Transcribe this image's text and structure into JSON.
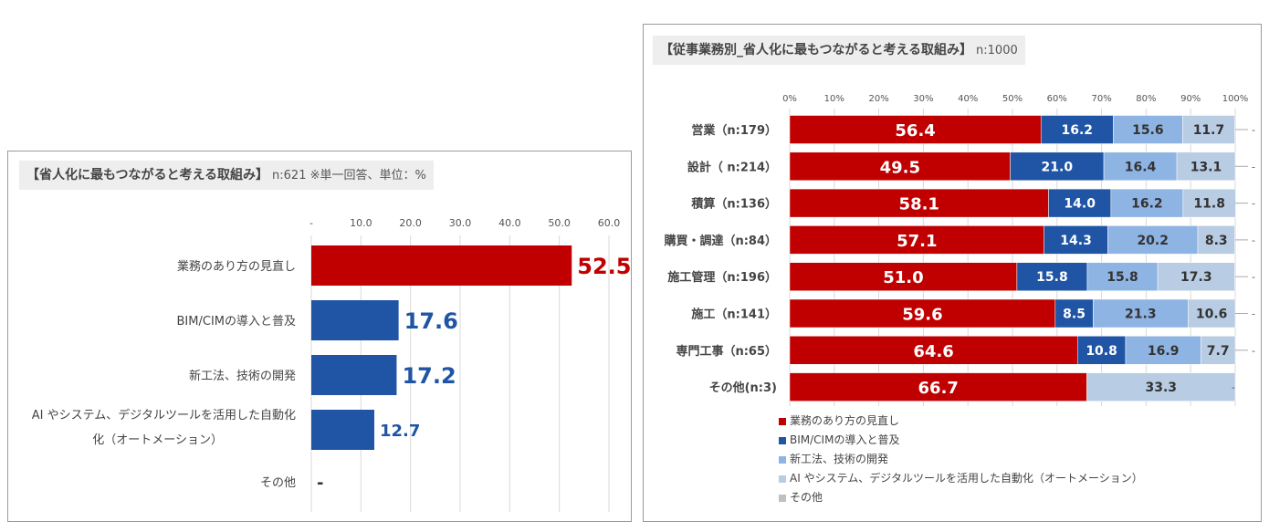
{
  "left": {
    "title": "【省人化に最もつながると考える取組み】",
    "subtitle": "n:621 ※単一回答、単位：%"
  },
  "right": {
    "title": "【従事業務別_省人化に最もつながると考える取組み】",
    "subtitle": "n:1000"
  },
  "chart_data": [
    {
      "type": "bar",
      "orientation": "horizontal",
      "title": "【省人化に最もつながると考える取組み】",
      "subtitle": "n:621 ※単一回答、単位：%",
      "categories": [
        "業務のあり方の見直し",
        "BIM/CIMの導入と普及",
        "新工法、技術の開発",
        "AI やシステム、デジタルツールを活用した自動化（オートメーション）",
        "その他"
      ],
      "category_lines": [
        [
          "業務のあり方の見直し"
        ],
        [
          "BIM/CIMの導入と普及"
        ],
        [
          "新工法、技術の開発"
        ],
        [
          "AI やシステム、デジタルツールを活用した自動化"
        ],
        [
          "化（オートメーション）"
        ]
      ],
      "values": [
        52.5,
        17.6,
        17.2,
        12.7,
        null
      ],
      "value_labels": [
        "52.5",
        "17.6",
        "17.2",
        "12.7",
        "-"
      ],
      "colors": [
        "#c00000",
        "#1f55a4",
        "#1f55a4",
        "#1f55a4",
        "#1f55a4"
      ],
      "label_colors": [
        "#c00000",
        "#1f55a4",
        "#1f55a4",
        "#1f55a4",
        "#333333"
      ],
      "xlim": [
        0,
        60
      ],
      "xticks": [
        "-",
        "10.0",
        "20.0",
        "30.0",
        "40.0",
        "50.0",
        "60.0"
      ],
      "grid": true
    },
    {
      "type": "bar",
      "stacked": true,
      "orientation": "horizontal",
      "percent": true,
      "title": "【従事業務別_省人化に最もつながると考える取組み】",
      "subtitle": "n:1000",
      "categories": [
        "営業（n:179）",
        "設計（ n:214）",
        "積算（n:136）",
        "購買・調達（n:84）",
        "施工管理（n:196）",
        "施工（n:141）",
        "専門工事（n:65）",
        "その他(n:3)"
      ],
      "xticks": [
        "0%",
        "10%",
        "20%",
        "30%",
        "40%",
        "50%",
        "60%",
        "70%",
        "80%",
        "90%",
        "100%"
      ],
      "xlim": [
        0,
        100
      ],
      "series": [
        {
          "name": "業務のあり方の見直し",
          "color": "#c00000",
          "values": [
            56.4,
            49.5,
            58.1,
            57.1,
            51.0,
            59.6,
            64.6,
            66.7
          ]
        },
        {
          "name": "BIM/CIMの導入と普及",
          "color": "#1f55a4",
          "values": [
            16.2,
            21.0,
            14.0,
            14.3,
            15.8,
            8.5,
            10.8,
            0
          ]
        },
        {
          "name": "新工法、技術の開発",
          "color": "#8eb4e3",
          "values": [
            15.6,
            16.4,
            16.2,
            20.2,
            15.8,
            21.3,
            16.9,
            0
          ]
        },
        {
          "name": "AI やシステム、デジタルツールを活用した自動化（オートメーション）",
          "color": "#b8cce4",
          "values": [
            11.7,
            13.1,
            11.8,
            8.3,
            17.3,
            10.6,
            7.7,
            33.3
          ]
        },
        {
          "name": "その他",
          "color": "#c0c0c0",
          "values": [
            0,
            0,
            0,
            0,
            0,
            0,
            0,
            0
          ]
        }
      ],
      "value_labels": [
        [
          "56.4",
          "16.2",
          "15.6",
          "11.7"
        ],
        [
          "49.5",
          "21.0",
          "16.4",
          "13.1"
        ],
        [
          "58.1",
          "14.0",
          "16.2",
          "11.8"
        ],
        [
          "57.1",
          "14.3",
          "20.2",
          "8.3"
        ],
        [
          "51.0",
          "15.8",
          "15.8",
          "17.3"
        ],
        [
          "59.6",
          "8.5",
          "21.3",
          "10.6"
        ],
        [
          "64.6",
          "10.8",
          "16.9",
          "7.7"
        ],
        [
          "66.7",
          "",
          "",
          "33.3"
        ]
      ],
      "other_labels": [
        "-",
        "-",
        "-",
        "-",
        "-",
        "-",
        "-",
        "-"
      ],
      "legend_position": "bottom-left",
      "grid": true
    }
  ]
}
